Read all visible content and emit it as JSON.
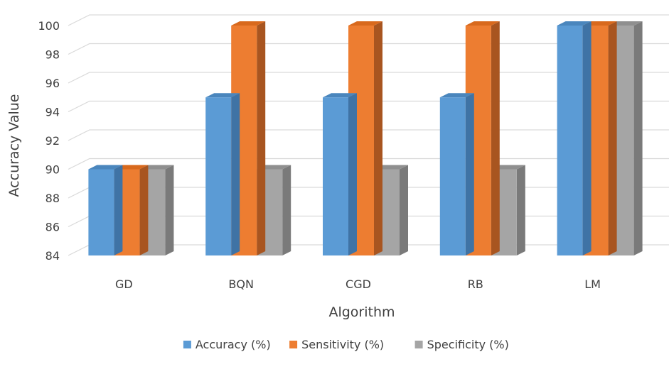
{
  "chart_data": {
    "type": "bar",
    "title": "",
    "xlabel": "Algorithm",
    "ylabel": "Accuracy Value",
    "ylim": [
      84,
      100
    ],
    "yticks": [
      84,
      86,
      88,
      90,
      92,
      94,
      96,
      98,
      100
    ],
    "categories": [
      "GD",
      "BQN",
      "CGD",
      "RB",
      "LM"
    ],
    "series": [
      {
        "name": "Accuracy (%)",
        "values": [
          90,
          95,
          95,
          95,
          100
        ],
        "color": "#5b9bd5",
        "top_color": "#4a86bd",
        "side_color": "#3f73a5"
      },
      {
        "name": "Sensitivity (%)",
        "values": [
          90,
          100,
          100,
          100,
          100
        ],
        "color": "#ed7d31",
        "top_color": "#d8691d",
        "side_color": "#a85520"
      },
      {
        "name": "Specificity (%)",
        "values": [
          90,
          90,
          90,
          90,
          100
        ],
        "color": "#a5a5a5",
        "top_color": "#8f8f8f",
        "side_color": "#7a7a7a"
      }
    ],
    "grid": true,
    "legend_position": "bottom",
    "style": "3d-column"
  }
}
